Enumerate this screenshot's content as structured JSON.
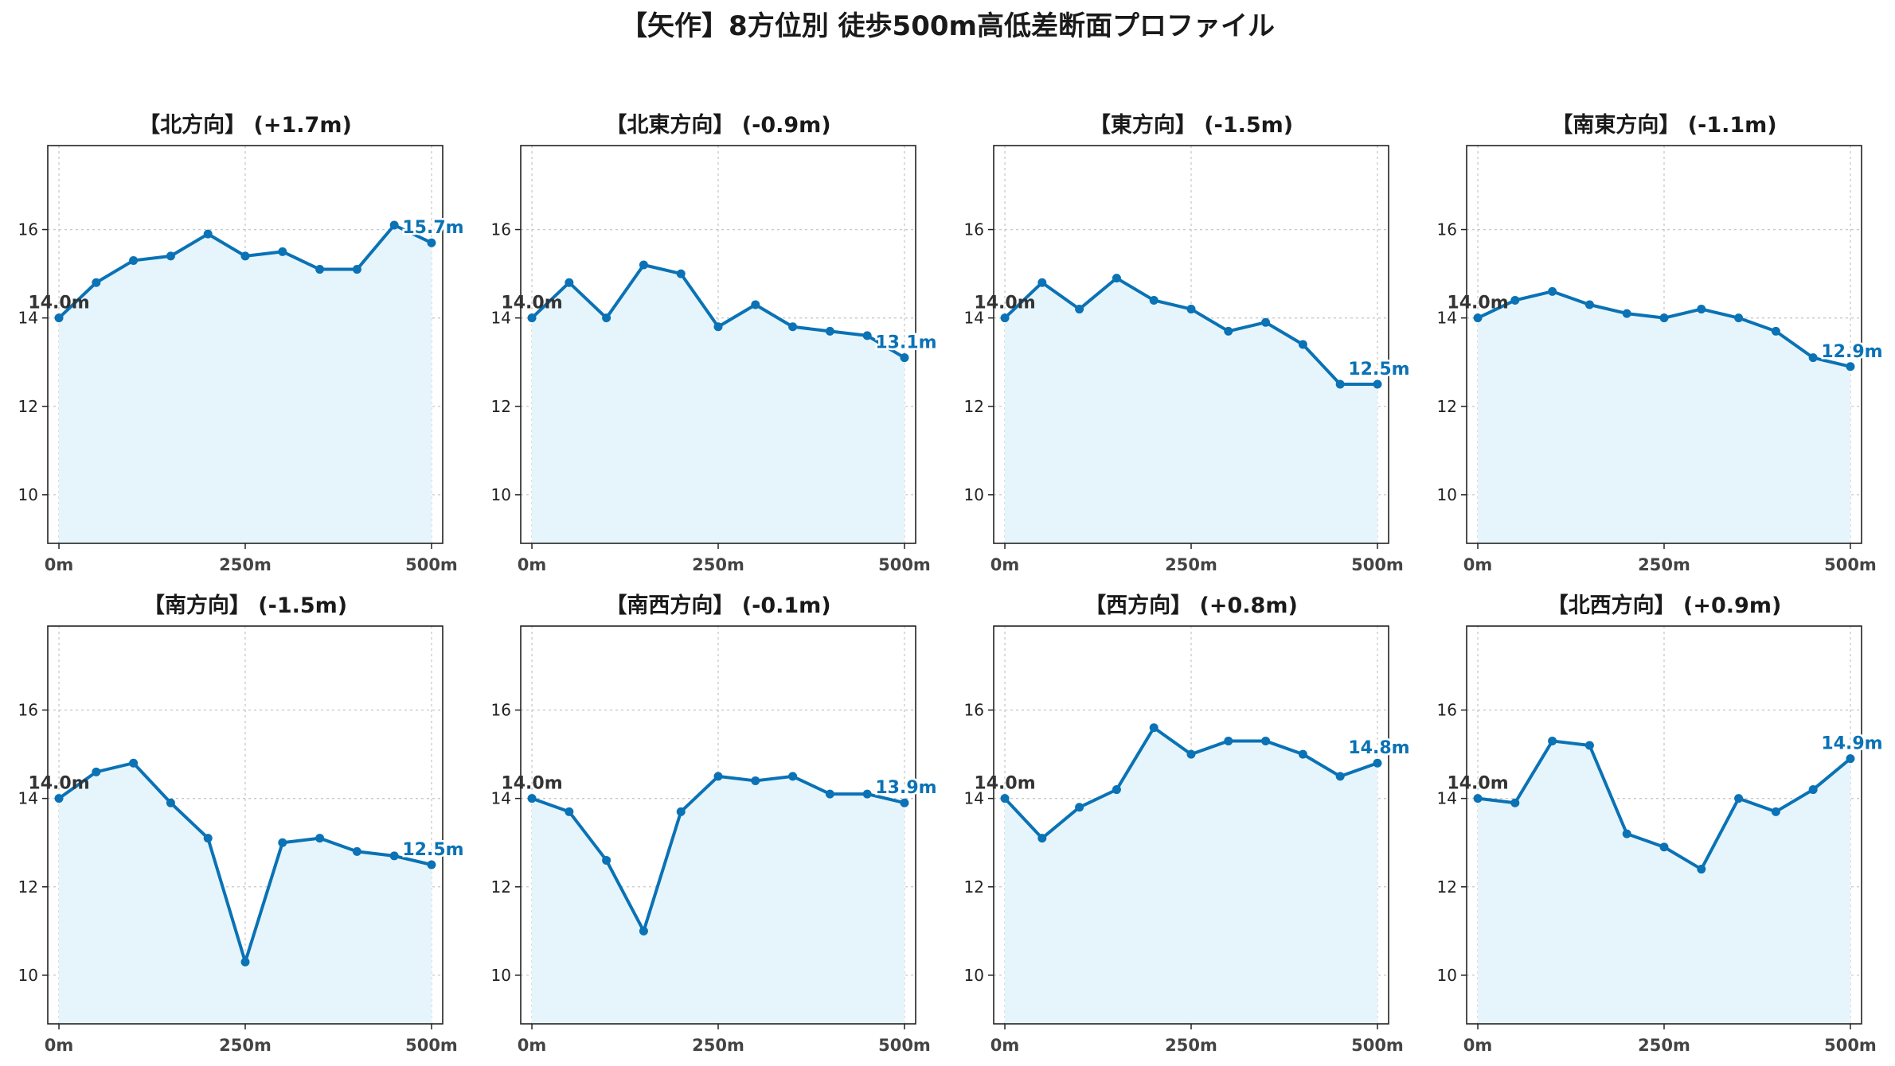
{
  "figure": {
    "title": "【矢作】8方位別 徒歩500m高低差断面プロファイル"
  },
  "style": {
    "line_color": "#0a72b5",
    "fill_color": "#e6f5fb",
    "start_label_color": "#333333",
    "end_label_color": "#0a72b5"
  },
  "chart_data": [
    {
      "type": "line",
      "title": "【北方向】 (+1.7m)",
      "x": [
        0,
        50,
        100,
        150,
        200,
        250,
        300,
        350,
        400,
        450,
        500
      ],
      "values": [
        14.0,
        14.8,
        15.3,
        15.4,
        15.9,
        15.4,
        15.5,
        15.1,
        15.1,
        16.1,
        15.7
      ],
      "start_label": "14.0m",
      "end_label": "15.7m",
      "xticks": [
        0,
        250,
        500
      ],
      "xtick_labels": [
        "0m",
        "250m",
        "500m"
      ],
      "yticks": [
        10,
        12,
        14,
        16
      ],
      "ytick_labels": [
        "10",
        "12",
        "14",
        "16"
      ],
      "xlim": [
        -15,
        515
      ],
      "ylim": [
        8.9,
        17.9
      ],
      "grid": true
    },
    {
      "type": "line",
      "title": "【北東方向】 (-0.9m)",
      "x": [
        0,
        50,
        100,
        150,
        200,
        250,
        300,
        350,
        400,
        450,
        500
      ],
      "values": [
        14.0,
        14.8,
        14.0,
        15.2,
        15.0,
        13.8,
        14.3,
        13.8,
        13.7,
        13.6,
        13.1
      ],
      "start_label": "14.0m",
      "end_label": "13.1m",
      "xticks": [
        0,
        250,
        500
      ],
      "xtick_labels": [
        "0m",
        "250m",
        "500m"
      ],
      "yticks": [
        10,
        12,
        14,
        16
      ],
      "ytick_labels": [
        "10",
        "12",
        "14",
        "16"
      ],
      "xlim": [
        -15,
        515
      ],
      "ylim": [
        8.9,
        17.9
      ],
      "grid": true
    },
    {
      "type": "line",
      "title": "【東方向】 (-1.5m)",
      "x": [
        0,
        50,
        100,
        150,
        200,
        250,
        300,
        350,
        400,
        450,
        500
      ],
      "values": [
        14.0,
        14.8,
        14.2,
        14.9,
        14.4,
        14.2,
        13.7,
        13.9,
        13.4,
        12.5,
        12.5
      ],
      "start_label": "14.0m",
      "end_label": "12.5m",
      "xticks": [
        0,
        250,
        500
      ],
      "xtick_labels": [
        "0m",
        "250m",
        "500m"
      ],
      "yticks": [
        10,
        12,
        14,
        16
      ],
      "ytick_labels": [
        "10",
        "12",
        "14",
        "16"
      ],
      "xlim": [
        -15,
        515
      ],
      "ylim": [
        8.9,
        17.9
      ],
      "grid": true
    },
    {
      "type": "line",
      "title": "【南東方向】 (-1.1m)",
      "x": [
        0,
        50,
        100,
        150,
        200,
        250,
        300,
        350,
        400,
        450,
        500
      ],
      "values": [
        14.0,
        14.4,
        14.6,
        14.3,
        14.1,
        14.0,
        14.2,
        14.0,
        13.7,
        13.1,
        12.9
      ],
      "start_label": "14.0m",
      "end_label": "12.9m",
      "xticks": [
        0,
        250,
        500
      ],
      "xtick_labels": [
        "0m",
        "250m",
        "500m"
      ],
      "yticks": [
        10,
        12,
        14,
        16
      ],
      "ytick_labels": [
        "10",
        "12",
        "14",
        "16"
      ],
      "xlim": [
        -15,
        515
      ],
      "ylim": [
        8.9,
        17.9
      ],
      "grid": true
    },
    {
      "type": "line",
      "title": "【南方向】 (-1.5m)",
      "x": [
        0,
        50,
        100,
        150,
        200,
        250,
        300,
        350,
        400,
        450,
        500
      ],
      "values": [
        14.0,
        14.6,
        14.8,
        13.9,
        13.1,
        10.3,
        13.0,
        13.1,
        12.8,
        12.7,
        12.5
      ],
      "start_label": "14.0m",
      "end_label": "12.5m",
      "xticks": [
        0,
        250,
        500
      ],
      "xtick_labels": [
        "0m",
        "250m",
        "500m"
      ],
      "yticks": [
        10,
        12,
        14,
        16
      ],
      "ytick_labels": [
        "10",
        "12",
        "14",
        "16"
      ],
      "xlim": [
        -15,
        515
      ],
      "ylim": [
        8.9,
        17.9
      ],
      "grid": true
    },
    {
      "type": "line",
      "title": "【南西方向】 (-0.1m)",
      "x": [
        0,
        50,
        100,
        150,
        200,
        250,
        300,
        350,
        400,
        450,
        500
      ],
      "values": [
        14.0,
        13.7,
        12.6,
        11.0,
        13.7,
        14.5,
        14.4,
        14.5,
        14.1,
        14.1,
        13.9
      ],
      "start_label": "14.0m",
      "end_label": "13.9m",
      "xticks": [
        0,
        250,
        500
      ],
      "xtick_labels": [
        "0m",
        "250m",
        "500m"
      ],
      "yticks": [
        10,
        12,
        14,
        16
      ],
      "ytick_labels": [
        "10",
        "12",
        "14",
        "16"
      ],
      "xlim": [
        -15,
        515
      ],
      "ylim": [
        8.9,
        17.9
      ],
      "grid": true
    },
    {
      "type": "line",
      "title": "【西方向】 (+0.8m)",
      "x": [
        0,
        50,
        100,
        150,
        200,
        250,
        300,
        350,
        400,
        450,
        500
      ],
      "values": [
        14.0,
        13.1,
        13.8,
        14.2,
        15.6,
        15.0,
        15.3,
        15.3,
        15.0,
        14.5,
        14.8
      ],
      "start_label": "14.0m",
      "end_label": "14.8m",
      "xticks": [
        0,
        250,
        500
      ],
      "xtick_labels": [
        "0m",
        "250m",
        "500m"
      ],
      "yticks": [
        10,
        12,
        14,
        16
      ],
      "ytick_labels": [
        "10",
        "12",
        "14",
        "16"
      ],
      "xlim": [
        -15,
        515
      ],
      "ylim": [
        8.9,
        17.9
      ],
      "grid": true
    },
    {
      "type": "line",
      "title": "【北西方向】 (+0.9m)",
      "x": [
        0,
        50,
        100,
        150,
        200,
        250,
        300,
        350,
        400,
        450,
        500
      ],
      "values": [
        14.0,
        13.9,
        15.3,
        15.2,
        13.2,
        12.9,
        12.4,
        14.0,
        13.7,
        14.2,
        14.9
      ],
      "start_label": "14.0m",
      "end_label": "14.9m",
      "xticks": [
        0,
        250,
        500
      ],
      "xtick_labels": [
        "0m",
        "250m",
        "500m"
      ],
      "yticks": [
        10,
        12,
        14,
        16
      ],
      "ytick_labels": [
        "10",
        "12",
        "14",
        "16"
      ],
      "xlim": [
        -15,
        515
      ],
      "ylim": [
        8.9,
        17.9
      ],
      "grid": true
    }
  ]
}
